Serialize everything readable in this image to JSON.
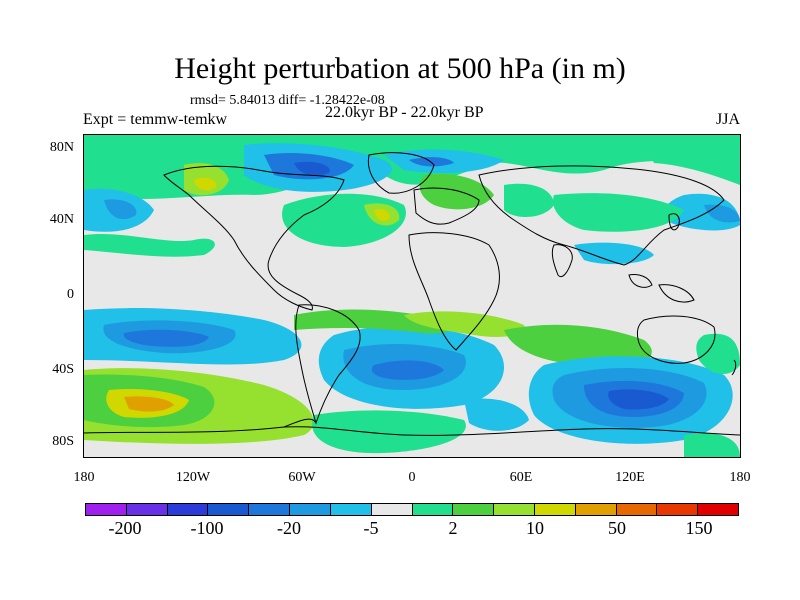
{
  "title": "Height perturbation at 500 hPa (in m)",
  "stats": "rmsd= 5.84013 diff= -1.28422e-08",
  "expt": "Expt = temmw-temkw",
  "period": "22.0kyr BP - 22.0kyr BP",
  "season": "JJA",
  "lat_ticks": [
    "80N",
    "40N",
    "0",
    "40S",
    "80S"
  ],
  "lon_ticks": [
    "180",
    "120W",
    "60W",
    "0",
    "60E",
    "120E",
    "180"
  ],
  "colorbar": {
    "colors": [
      "#a020f0",
      "#6a30e8",
      "#2c3cd8",
      "#1a5ad0",
      "#1e78dc",
      "#1e9be0",
      "#20c0e8",
      "#e8e8e8",
      "#20e090",
      "#4cd040",
      "#96e030",
      "#d0d800",
      "#e0a000",
      "#e86800",
      "#e83800",
      "#e00000"
    ],
    "labels": [
      "-200",
      "-100",
      "-20",
      "-5",
      "2",
      "10",
      "50",
      "150"
    ]
  },
  "colors": {
    "background_field": "#e8e8e8",
    "coastline": "#000000"
  }
}
